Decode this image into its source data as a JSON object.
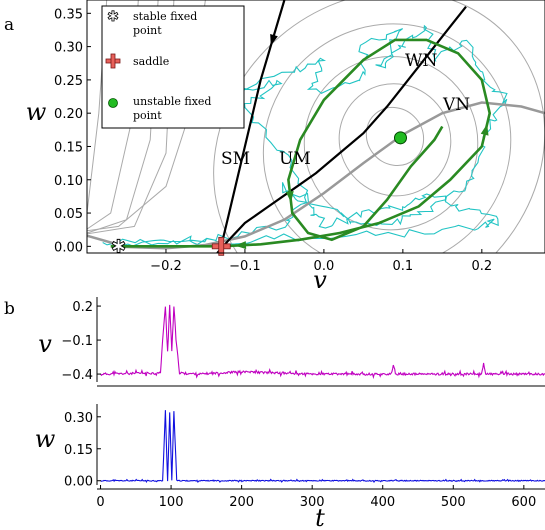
{
  "panel_labels": {
    "a": "a",
    "b": "b"
  },
  "legend": {
    "stable": "stable fixed point",
    "saddle": "saddle",
    "unstable": "unstable fixed point"
  },
  "annotations": {
    "SM": "SM",
    "UM": "UM",
    "WN": "WN",
    "VN": "VN"
  },
  "colors": {
    "nullcline_w": "#000000",
    "nullcline_v": "#999999",
    "flow": "#aaaaaa",
    "manifold": "#2a8a22",
    "trajectory": "#22c4c4",
    "v_trace": "#c000c0",
    "w_trace": "#1010e0"
  },
  "chart_data": [
    {
      "type": "line",
      "title": "",
      "xlabel": "v",
      "ylabel": "w",
      "xlim": [
        -0.3,
        0.28
      ],
      "ylim": [
        -0.01,
        0.37
      ],
      "x_ticks": [
        "−0.2",
        "−0.1",
        "0.0",
        "0.1",
        "0.2"
      ],
      "x_tick_values": [
        -0.2,
        -0.1,
        0.0,
        0.1,
        0.2
      ],
      "y_ticks": [
        "0.00",
        "0.05",
        "0.10",
        "0.15",
        "0.20",
        "0.25",
        "0.30",
        "0.35"
      ],
      "y_tick_values": [
        0.0,
        0.05,
        0.1,
        0.15,
        0.2,
        0.25,
        0.3,
        0.35
      ],
      "grid": false,
      "legend_position": "top-left",
      "fixed_points": [
        {
          "kind": "stable",
          "v": -0.26,
          "w": 0.0
        },
        {
          "kind": "saddle",
          "v": -0.13,
          "w": 0.0
        },
        {
          "kind": "unstable",
          "v": 0.097,
          "w": 0.163
        }
      ],
      "w_nullcline": {
        "name": "WN",
        "v": [
          -0.135,
          -0.12,
          -0.1,
          -0.07,
          -0.04,
          -0.01,
          0.02,
          0.05,
          0.08,
          0.1,
          0.12,
          0.14,
          0.16,
          0.18
        ],
        "w": [
          -0.01,
          0.01,
          0.035,
          0.06,
          0.085,
          0.11,
          0.14,
          0.17,
          0.21,
          0.24,
          0.27,
          0.3,
          0.33,
          0.36
        ]
      },
      "v_nullcline": {
        "name": "VN",
        "v": [
          -0.3,
          -0.25,
          -0.2,
          -0.15,
          -0.1,
          -0.05,
          0.0,
          0.05,
          0.1,
          0.15,
          0.2,
          0.25,
          0.28
        ],
        "w": [
          0.016,
          -0.001,
          -0.003,
          0.002,
          0.015,
          0.04,
          0.08,
          0.125,
          0.168,
          0.2,
          0.216,
          0.21,
          0.2
        ]
      },
      "stable_manifold": {
        "name": "SM",
        "v": [
          -0.13,
          -0.12,
          -0.11,
          -0.1,
          -0.09,
          -0.08,
          -0.07,
          -0.06,
          -0.05
        ],
        "w": [
          0.0,
          0.05,
          0.1,
          0.15,
          0.2,
          0.25,
          0.29,
          0.33,
          0.37
        ]
      },
      "unstable_manifold": {
        "name": "UM",
        "v": [
          -0.27,
          -0.2,
          -0.13,
          -0.08,
          -0.03,
          0.02,
          0.07,
          0.12,
          0.16,
          0.2,
          0.21,
          0.2,
          0.17,
          0.13,
          0.09,
          0.05,
          0.0,
          -0.03,
          -0.045,
          -0.04,
          -0.02,
          0.01,
          0.05,
          0.08,
          0.11,
          0.14,
          0.15
        ],
        "w": [
          0.0,
          0.0,
          0.0,
          0.003,
          0.01,
          0.02,
          0.035,
          0.06,
          0.1,
          0.15,
          0.2,
          0.25,
          0.29,
          0.31,
          0.31,
          0.28,
          0.22,
          0.16,
          0.1,
          0.05,
          0.02,
          0.01,
          0.03,
          0.07,
          0.12,
          0.16,
          0.18
        ]
      },
      "flow_lines": [
        {
          "v": [
            -0.32,
            -0.26,
            -0.2,
            -0.17,
            -0.15
          ],
          "w": [
            0.02,
            0.03,
            0.09,
            0.2,
            0.37
          ]
        },
        {
          "v": [
            -0.32,
            -0.24,
            -0.2,
            -0.19
          ],
          "w": [
            0.015,
            0.03,
            0.14,
            0.37
          ]
        },
        {
          "v": [
            -0.32,
            -0.25,
            -0.22,
            -0.21
          ],
          "w": [
            0.012,
            0.04,
            0.16,
            0.37
          ]
        },
        {
          "v": [
            -0.32,
            -0.27,
            -0.245,
            -0.235
          ],
          "w": [
            0.01,
            0.05,
            0.18,
            0.37
          ]
        },
        {
          "v": [
            -0.3,
            -0.285,
            -0.275
          ],
          "w": [
            0.05,
            0.2,
            0.37
          ]
        }
      ],
      "orbits": [
        {
          "cv": 0.09,
          "cw": 0.165,
          "rv": 0.035,
          "rw": 0.045
        },
        {
          "cv": 0.09,
          "cw": 0.16,
          "rv": 0.07,
          "rw": 0.085
        },
        {
          "cv": 0.085,
          "cw": 0.155,
          "rv": 0.11,
          "rw": 0.13
        },
        {
          "cv": 0.08,
          "cw": 0.15,
          "rv": 0.16,
          "rw": 0.18
        },
        {
          "cv": 0.07,
          "cw": 0.14,
          "rv": 0.22,
          "rw": 0.23
        }
      ],
      "noisy_trajectory": {
        "v": [
          -0.28,
          -0.2,
          -0.13,
          -0.05,
          -0.02,
          -0.06,
          -0.1,
          -0.05,
          -0.13,
          -0.04,
          0.0,
          -0.02,
          0.05,
          0.05,
          0.1,
          0.07,
          0.1,
          0.13,
          0.14,
          0.18,
          0.2,
          0.23,
          0.21,
          0.2,
          0.18,
          0.14,
          0.1,
          0.05,
          0.02,
          -0.05,
          -0.02,
          0.0,
          0.05,
          0.1,
          0.13,
          0.17,
          0.22,
          0.2,
          0.1,
          -0.02,
          -0.13,
          -0.2,
          -0.27
        ],
        "w": [
          0.005,
          0.008,
          0.012,
          0.03,
          0.08,
          0.15,
          0.21,
          0.25,
          0.23,
          0.26,
          0.28,
          0.23,
          0.25,
          0.3,
          0.33,
          0.27,
          0.3,
          0.33,
          0.28,
          0.31,
          0.26,
          0.22,
          0.18,
          0.13,
          0.09,
          0.06,
          0.04,
          0.03,
          0.05,
          0.09,
          0.06,
          0.03,
          0.05,
          0.06,
          0.08,
          0.06,
          0.04,
          0.03,
          0.02,
          0.015,
          0.008,
          0.004,
          0.002
        ]
      }
    },
    {
      "type": "line",
      "title": "",
      "xlabel": "",
      "ylabel": "v",
      "xlim": [
        -5,
        630
      ],
      "ylim": [
        -0.47,
        0.28
      ],
      "y_ticks": [
        "0.2",
        "−0.1",
        "−0.4"
      ],
      "y_tick_values": [
        0.2,
        -0.1,
        -0.4
      ],
      "series": [
        {
          "t": [
            0,
            85,
            88,
            92,
            95,
            98,
            101,
            104,
            107,
            112,
            140,
            200,
            300,
            412,
            415,
            418,
            500,
            540,
            543,
            546,
            630
          ],
          "values": [
            -0.4,
            -0.39,
            -0.1,
            0.2,
            -0.2,
            0.21,
            -0.2,
            0.21,
            -0.1,
            -0.39,
            -0.4,
            -0.38,
            -0.4,
            -0.4,
            -0.33,
            -0.4,
            -0.4,
            -0.4,
            -0.3,
            -0.4,
            -0.4
          ]
        }
      ]
    },
    {
      "type": "line",
      "title": "",
      "xlabel": "t",
      "ylabel": "w",
      "xlim": [
        -5,
        630
      ],
      "ylim": [
        -0.02,
        0.36
      ],
      "x_ticks": [
        "0",
        "100",
        "200",
        "300",
        "400",
        "500",
        "600"
      ],
      "x_tick_values": [
        0,
        100,
        200,
        300,
        400,
        500,
        600
      ],
      "y_ticks": [
        "0.00",
        "0.15",
        "0.30"
      ],
      "y_tick_values": [
        0.0,
        0.15,
        0.3
      ],
      "series": [
        {
          "t": [
            0,
            88,
            92,
            95,
            98,
            101,
            104,
            108,
            630
          ],
          "values": [
            0.0,
            0.0,
            0.33,
            0.0,
            0.32,
            0.0,
            0.33,
            0.0,
            0.0
          ]
        }
      ]
    }
  ]
}
